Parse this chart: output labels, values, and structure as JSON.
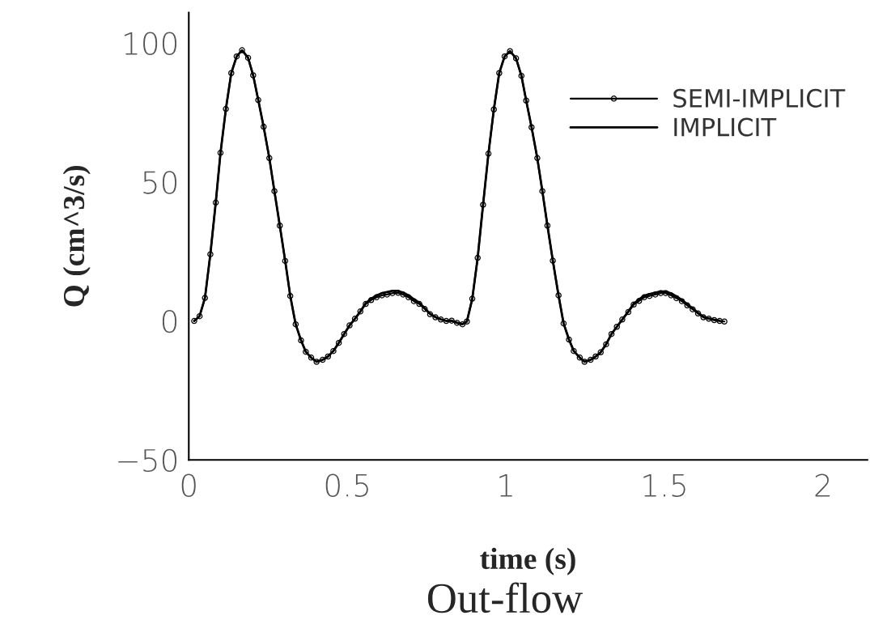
{
  "chart_data": {
    "type": "line",
    "title": "Out-flow",
    "xlabel": "time (s)",
    "ylabel": "Q (cm^3/s)",
    "xlim": [
      0,
      2.14
    ],
    "ylim": [
      -50,
      111
    ],
    "xticks": [
      0,
      0.5,
      1,
      1.5,
      2
    ],
    "yticks": [
      -50,
      0,
      50,
      100
    ],
    "grid": false,
    "legend": "top right",
    "series": [
      {
        "name": "SEMI-IMPLICIT",
        "color": "#000000",
        "marker": "circle",
        "x": [
          0.017,
          0.034,
          0.051,
          0.068,
          0.085,
          0.1,
          0.117,
          0.134,
          0.151,
          0.168,
          0.187,
          0.203,
          0.219,
          0.236,
          0.254,
          0.27,
          0.287,
          0.304,
          0.32,
          0.337,
          0.354,
          0.369,
          0.386,
          0.403,
          0.422,
          0.439,
          0.456,
          0.473,
          0.49,
          0.507,
          0.524,
          0.541,
          0.558,
          0.575,
          0.592,
          0.609,
          0.625,
          0.642,
          0.66,
          0.676,
          0.693,
          0.71,
          0.727,
          0.744,
          0.761,
          0.778,
          0.795,
          0.812,
          0.829,
          0.846,
          0.863,
          0.877,
          0.894,
          0.911,
          0.928,
          0.945,
          0.962,
          0.979,
          0.996,
          1.013,
          1.032,
          1.049,
          1.064,
          1.081,
          1.099,
          1.115,
          1.131,
          1.148,
          1.166,
          1.182,
          1.199,
          1.214,
          1.233,
          1.248,
          1.267,
          1.283,
          1.299,
          1.316,
          1.333,
          1.35,
          1.367,
          1.386,
          1.403,
          1.42,
          1.436,
          1.453,
          1.471,
          1.488,
          1.504,
          1.521,
          1.538,
          1.555,
          1.572,
          1.589,
          1.606,
          1.623,
          1.64,
          1.657,
          1.674,
          1.689
        ],
        "values": [
          0,
          1.7,
          8.3,
          24,
          42.6,
          60.5,
          76.3,
          89.2,
          95.2,
          97.4,
          94.7,
          88.4,
          79.5,
          69.9,
          58.6,
          46.7,
          34.3,
          21.6,
          9,
          -1.2,
          -7,
          -11.1,
          -13.2,
          -14.7,
          -14,
          -12.8,
          -10.8,
          -7.9,
          -4.7,
          -1.6,
          0.8,
          3.4,
          6.1,
          7.5,
          8.5,
          9.2,
          9.5,
          10,
          10.1,
          9.5,
          8.5,
          7.1,
          6.1,
          4.3,
          2.4,
          1.3,
          0.5,
          0,
          0.1,
          -0.7,
          -1.2,
          -0.2,
          8,
          22.7,
          41.8,
          60.2,
          76.1,
          89.2,
          95.2,
          97.1,
          94.5,
          88.2,
          79.3,
          69.7,
          58.6,
          46.7,
          34.3,
          21.7,
          9.2,
          -0.9,
          -6.7,
          -10.8,
          -13.2,
          -14.7,
          -14,
          -12.8,
          -11.3,
          -8.4,
          -4.7,
          -2.1,
          0.5,
          3.2,
          5.9,
          7.2,
          8.5,
          9,
          9.5,
          10,
          10,
          9.2,
          8.2,
          7.1,
          5.6,
          4.2,
          2.7,
          1.3,
          0.8,
          0.3,
          0,
          -0.2
        ]
      },
      {
        "name": "IMPLICIT",
        "color": "#000000",
        "x": [
          0.017,
          0.034,
          0.051,
          0.068,
          0.085,
          0.1,
          0.117,
          0.134,
          0.151,
          0.168,
          0.187,
          0.203,
          0.219,
          0.236,
          0.254,
          0.27,
          0.287,
          0.304,
          0.32,
          0.337,
          0.354,
          0.369,
          0.386,
          0.403,
          0.422,
          0.439,
          0.456,
          0.473,
          0.49,
          0.507,
          0.524,
          0.541,
          0.558,
          0.575,
          0.592,
          0.609,
          0.625,
          0.642,
          0.66,
          0.676,
          0.693,
          0.71,
          0.727,
          0.744,
          0.761,
          0.778,
          0.795,
          0.812,
          0.829,
          0.846,
          0.863,
          0.877,
          0.894,
          0.911,
          0.928,
          0.945,
          0.962,
          0.979,
          0.996,
          1.013,
          1.032,
          1.049,
          1.064,
          1.081,
          1.099,
          1.115,
          1.131,
          1.148,
          1.166,
          1.182,
          1.199,
          1.214,
          1.233,
          1.248,
          1.267,
          1.283,
          1.299,
          1.316,
          1.333,
          1.35,
          1.367,
          1.386,
          1.403,
          1.42,
          1.436,
          1.453,
          1.471,
          1.488,
          1.504,
          1.521,
          1.538,
          1.555,
          1.572,
          1.589,
          1.606,
          1.623,
          1.64,
          1.657,
          1.674
        ],
        "values": [
          0,
          1.7,
          8.3,
          24,
          42.6,
          60.5,
          76.3,
          89.2,
          95.2,
          97.4,
          94.7,
          88.4,
          79.5,
          69.9,
          58.6,
          46.7,
          34.3,
          21.6,
          9,
          -1.2,
          -7,
          -11.1,
          -13.2,
          -14.7,
          -14,
          -12.8,
          -10.8,
          -7.9,
          -4.7,
          -1.6,
          0.8,
          3.4,
          6.4,
          8,
          9.2,
          10,
          10.4,
          10.8,
          10.8,
          10.2,
          9.2,
          7.8,
          6.6,
          4.6,
          2.6,
          1.4,
          0.6,
          0,
          0.1,
          -0.7,
          -1.2,
          -0.2,
          8,
          22.7,
          41.8,
          60.2,
          76.1,
          89.2,
          95.2,
          97.1,
          94.5,
          88.2,
          79.3,
          69.7,
          58.6,
          46.7,
          34.3,
          21.7,
          9.2,
          -0.9,
          -6.7,
          -10.8,
          -13.2,
          -14.7,
          -14,
          -12.8,
          -11.3,
          -8.4,
          -4.7,
          -2.1,
          0.5,
          3.4,
          6.2,
          7.8,
          9.1,
          9.7,
          10.2,
          10.6,
          10.6,
          9.9,
          8.8,
          7.6,
          6,
          4.5,
          2.9,
          1.5,
          0.9,
          0.4,
          0.1
        ]
      }
    ]
  }
}
